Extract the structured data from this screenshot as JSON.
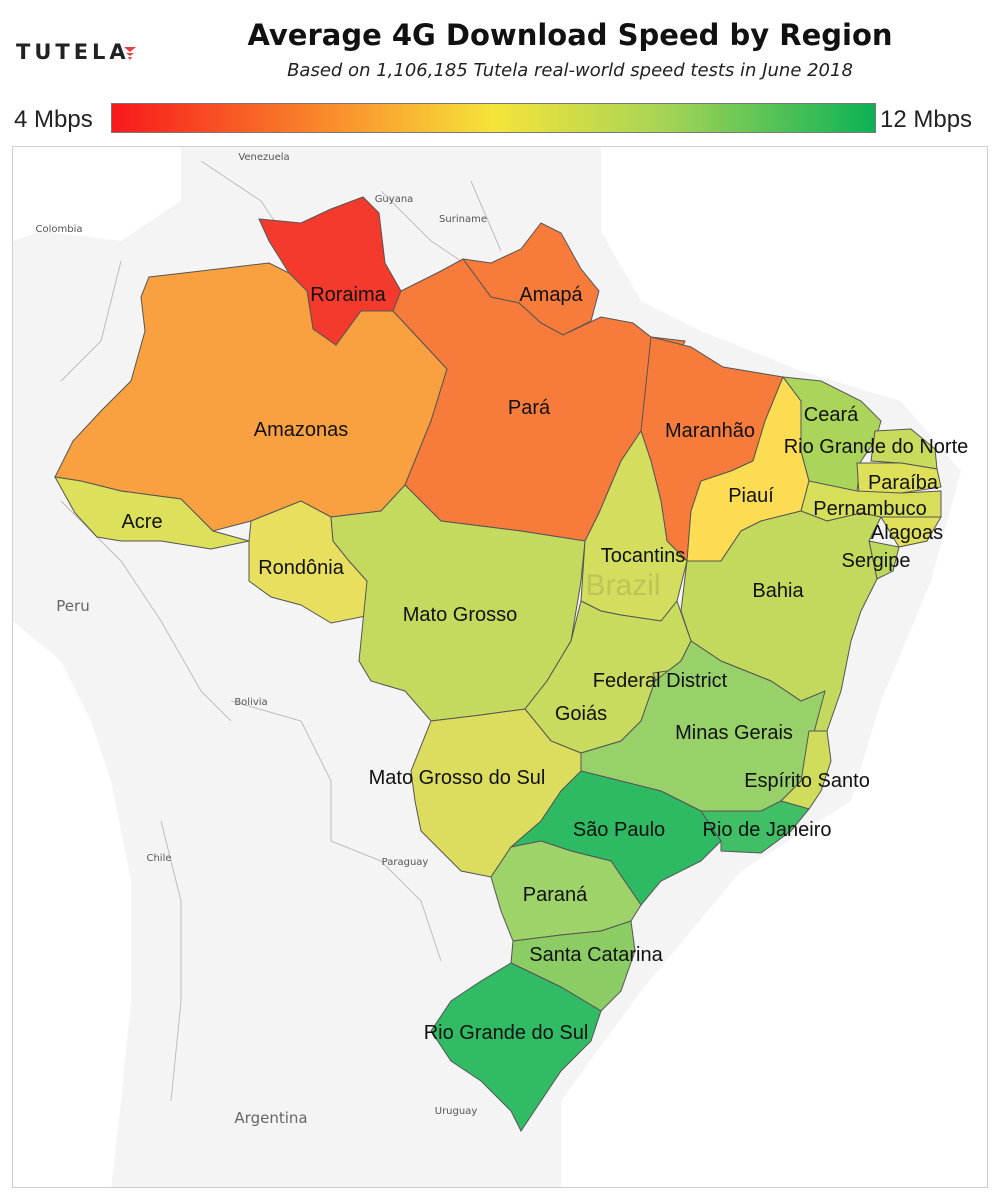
{
  "header": {
    "logo_text": "TUTELA",
    "title": "Average 4G Download Speed by Region",
    "subtitle": "Based on 1,106,185 Tutela real-world speed tests in June 2018"
  },
  "legend": {
    "min_label": "4 Mbps",
    "max_label": "12 Mbps",
    "min_color": "#f8191c",
    "mid_color": "#f5e43a",
    "max_color": "#0cb256"
  },
  "countries": {
    "venezuela": "Venezuela",
    "guyana": "Guyana",
    "suriname": "Suriname",
    "colombia": "Colombia",
    "peru": "Peru",
    "bolivia": "Bolivia",
    "chile": "Chile",
    "paraguay": "Paraguay",
    "argentina": "Argentina",
    "uruguay": "Uruguay",
    "brazil": "Brazil"
  },
  "regions": {
    "roraima": {
      "label": "Roraima",
      "color": "#f43a2d"
    },
    "amapa": {
      "label": "Amapá",
      "color": "#f77c3b"
    },
    "amazonas": {
      "label": "Amazonas",
      "color": "#f9a140"
    },
    "para": {
      "label": "Pará",
      "color": "#f77c3b"
    },
    "maranhao": {
      "label": "Maranhão",
      "color": "#f77c3b"
    },
    "ceara": {
      "label": "Ceará",
      "color": "#aad45a"
    },
    "rio_grande_do_norte": {
      "label": "Rio Grande do Norte",
      "color": "#c8db5c"
    },
    "paraiba": {
      "label": "Paraíba",
      "color": "#dfe05a"
    },
    "piaui": {
      "label": "Piauí",
      "color": "#fbdc52"
    },
    "pernambuco": {
      "label": "Pernambuco",
      "color": "#d6de5a"
    },
    "alagoas": {
      "label": "Alagoas",
      "color": "#e0e05a"
    },
    "sergipe": {
      "label": "Sergipe",
      "color": "#bcd95c"
    },
    "acre": {
      "label": "Acre",
      "color": "#dde05a"
    },
    "rondonia": {
      "label": "Rondônia",
      "color": "#e8df5e"
    },
    "tocantins": {
      "label": "Tocantins",
      "color": "#d3dd5e"
    },
    "bahia": {
      "label": "Bahia",
      "color": "#c3d95e"
    },
    "mato_grosso": {
      "label": "Mato Grosso",
      "color": "#c4da5e"
    },
    "federal_district": {
      "label": "Federal District",
      "color": "#bcd95c"
    },
    "goias": {
      "label": "Goiás",
      "color": "#c9db5e"
    },
    "minas_gerais": {
      "label": "Minas Gerais",
      "color": "#98d16a"
    },
    "espirito_santo": {
      "label": "Espírito Santo",
      "color": "#cfdc5c"
    },
    "mato_grosso_do_sul": {
      "label": "Mato Grosso do Sul",
      "color": "#dcdd5e"
    },
    "sao_paulo": {
      "label": "São Paulo",
      "color": "#2dba62"
    },
    "rio_de_janeiro": {
      "label": "Rio de Janeiro",
      "color": "#41bf66"
    },
    "parana": {
      "label": "Paraná",
      "color": "#9ed36a"
    },
    "santa_catarina": {
      "label": "Santa Catarina",
      "color": "#8bcd64"
    },
    "rio_grande_do_sul": {
      "label": "Rio Grande do Sul",
      "color": "#30bb64"
    }
  }
}
